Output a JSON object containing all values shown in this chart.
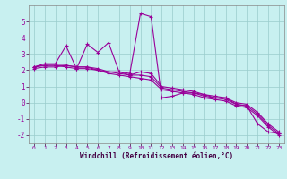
{
  "xlabel": "Windchill (Refroidissement éolien,°C)",
  "x_ticks": [
    0,
    1,
    2,
    3,
    4,
    5,
    6,
    7,
    8,
    9,
    10,
    11,
    12,
    13,
    14,
    15,
    16,
    17,
    18,
    19,
    20,
    21,
    22,
    23
  ],
  "ylim": [
    -2.5,
    6.0
  ],
  "xlim": [
    -0.5,
    23.5
  ],
  "yticks": [
    -2,
    -1,
    0,
    1,
    2,
    3,
    4,
    5
  ],
  "bg_color": "#c8f0f0",
  "line_color": "#990099",
  "grid_color": "#99cccc",
  "lines": [
    [
      2.2,
      2.4,
      2.4,
      3.5,
      2.1,
      3.6,
      3.1,
      3.7,
      1.9,
      1.8,
      5.5,
      5.3,
      0.3,
      0.4,
      0.6,
      0.6,
      0.5,
      0.3,
      0.3,
      -0.1,
      -0.2,
      -1.3,
      -1.8,
      -1.9
    ],
    [
      2.2,
      2.3,
      2.3,
      2.3,
      2.2,
      2.2,
      2.1,
      1.9,
      1.9,
      1.7,
      1.9,
      1.8,
      1.0,
      0.9,
      0.8,
      0.7,
      0.5,
      0.4,
      0.3,
      0.0,
      -0.1,
      -0.6,
      -1.3,
      -1.8
    ],
    [
      2.1,
      2.2,
      2.2,
      2.3,
      2.2,
      2.2,
      2.0,
      1.9,
      1.8,
      1.7,
      1.7,
      1.6,
      0.9,
      0.8,
      0.7,
      0.6,
      0.4,
      0.3,
      0.2,
      -0.1,
      -0.2,
      -0.7,
      -1.4,
      -1.9
    ],
    [
      2.2,
      2.3,
      2.3,
      2.2,
      2.1,
      2.1,
      2.0,
      1.8,
      1.7,
      1.6,
      1.5,
      1.4,
      0.8,
      0.7,
      0.6,
      0.5,
      0.3,
      0.2,
      0.1,
      -0.2,
      -0.3,
      -0.8,
      -1.5,
      -2.0
    ]
  ]
}
